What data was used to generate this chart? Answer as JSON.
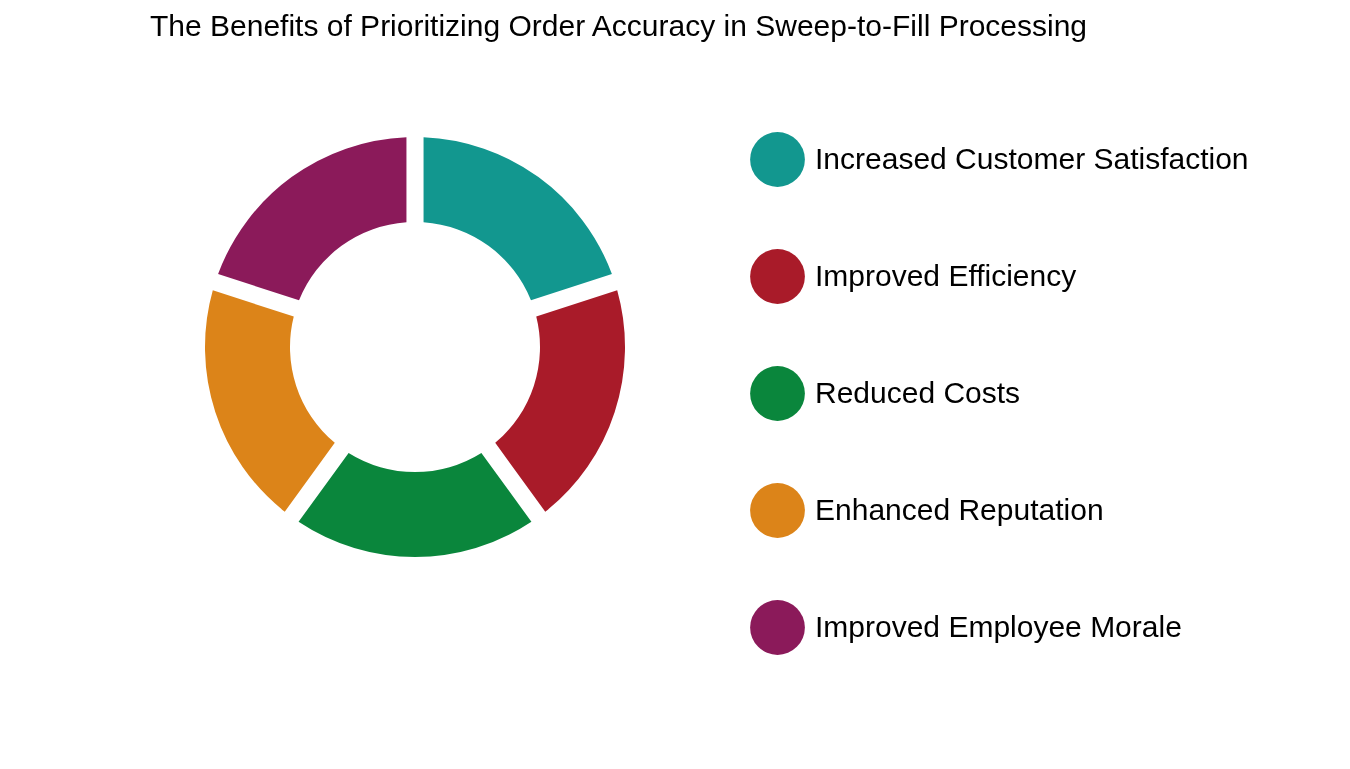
{
  "chart_data": {
    "type": "donut",
    "title": "The Benefits of Prioritizing Order Accuracy in Sweep-to-Fill Processing",
    "categories": [
      "Increased Customer Satisfaction",
      "Improved Efficiency",
      "Reduced Costs",
      "Enhanced Reputation",
      "Improved Employee Morale"
    ],
    "values": [
      20,
      20,
      20,
      20,
      20
    ],
    "colors": [
      "#12978f",
      "#a91b29",
      "#0a863c",
      "#dc8419",
      "#8b1a5a"
    ],
    "legend": "right"
  }
}
